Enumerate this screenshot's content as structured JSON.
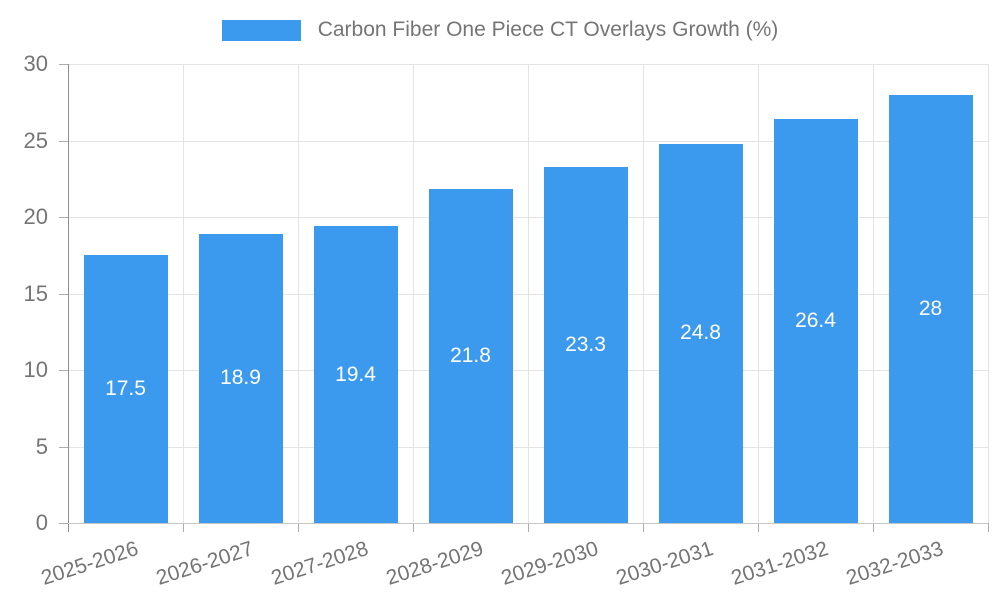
{
  "chart_data": {
    "type": "bar",
    "title": "Carbon Fiber One Piece CT Overlays Growth (%)",
    "categories": [
      "2025-2026",
      "2026-2027",
      "2027-2028",
      "2028-2029",
      "2029-2030",
      "2030-2031",
      "2031-2032",
      "2032-2033"
    ],
    "values": [
      17.5,
      18.9,
      19.4,
      21.8,
      23.3,
      24.8,
      26.4,
      28
    ],
    "bar_labels": [
      "17.5",
      "18.9",
      "19.4",
      "21.8",
      "23.3",
      "24.8",
      "26.4",
      "28"
    ],
    "xlabel": "",
    "ylabel": "",
    "ylim": [
      0,
      30
    ],
    "yticks": [
      0,
      5,
      10,
      15,
      20,
      25,
      30
    ],
    "grid": "on",
    "legend_position": "top-center",
    "colors": {
      "bar": "#3b99ee",
      "bar_value_text": "#ffffff",
      "axis_text": "#757575",
      "gridline": "#e4e4e4",
      "axis_line": "#8e8e8e",
      "tick": "#adadad",
      "baseline": "#c6c6c6",
      "background": "#ffffff"
    }
  }
}
